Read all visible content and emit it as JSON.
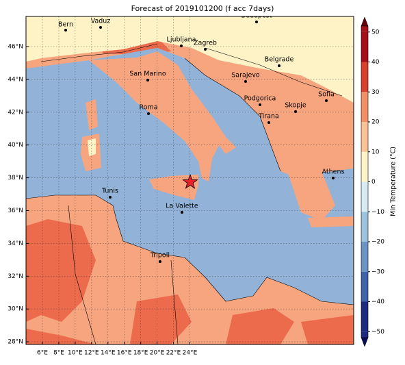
{
  "map": {
    "title": "Forecast of 2019101200 (f acc 7days)",
    "xticks": [
      "6°E",
      "8°E",
      "10°E",
      "12°E",
      "14°E",
      "16°E",
      "18°E",
      "20°E",
      "22°E",
      "24°E"
    ],
    "yticks": [
      "46°N",
      "44°N",
      "42°N",
      "40°N",
      "38°N",
      "36°N",
      "34°N",
      "32°N",
      "30°N",
      "28°N"
    ],
    "cities": [
      "Bern",
      "Vaduz",
      "Budapest",
      "Ljubljana",
      "Zagreb",
      "Belgrade",
      "San Marino",
      "Sarajevo",
      "Sofia",
      "Podgorica",
      "Skopje",
      "Roma",
      "Tirana",
      "Athens",
      "Tunis",
      "La Valette",
      "Tripoli"
    ],
    "colorbar": {
      "label": "Min Temperature (°C)",
      "lim": [
        -52,
        52
      ],
      "ticks": [
        {
          "value": -50,
          "label": "−50"
        },
        {
          "value": -40,
          "label": "−40"
        },
        {
          "value": -30,
          "label": "−30"
        },
        {
          "value": -20,
          "label": "−20"
        },
        {
          "value": -10,
          "label": "−10"
        },
        0,
        10,
        20,
        30,
        40,
        50
      ]
    }
  }
}
